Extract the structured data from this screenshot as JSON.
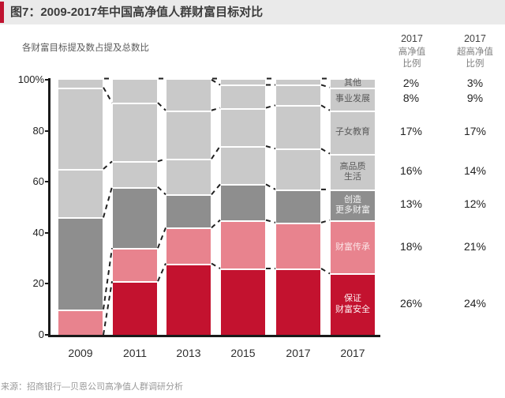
{
  "title": "图7：2009-2017年中国高净值人群财富目标对比",
  "subtitle": "各财富目标提及数占提及总数比",
  "source": "来源：招商银行—贝恩公司高净值人群调研分析",
  "colors": {
    "accent": "#bf1330",
    "title_bg": "#eaeaea",
    "light_gray": "#c9c9c9",
    "dark_gray": "#8e8e8e",
    "pink": "#e8838e",
    "red": "#c3122f",
    "axis": "#1a1a1a"
  },
  "chart_data": {
    "type": "bar",
    "stacked": true,
    "unit": "%",
    "title": "各财富目标提及数占提及总数比",
    "ylim": [
      0,
      100
    ],
    "yticks": [
      {
        "label": "100%",
        "value": 100
      },
      {
        "label": "80",
        "value": 80
      },
      {
        "label": "60",
        "value": 60
      },
      {
        "label": "40",
        "value": 40
      },
      {
        "label": "20",
        "value": 20
      },
      {
        "label": "0",
        "value": 0
      }
    ],
    "x_labels": [
      "2009",
      "2011",
      "2013",
      "2015",
      "2017",
      "2017"
    ],
    "legend": [
      {
        "name": "其他",
        "color": "#c9c9c9",
        "text_color": "#5a5a5a",
        "label_lines": [
          "其他"
        ]
      },
      {
        "name": "事业发展",
        "color": "#c9c9c9",
        "text_color": "#5a5a5a",
        "label_lines": [
          "事业发展"
        ]
      },
      {
        "name": "高品质生活",
        "color": "#c9c9c9",
        "text_color": "#5a5a5a",
        "label_lines": [
          "高品质",
          "生活"
        ]
      },
      {
        "name": "子女教育",
        "color": "#c9c9c9",
        "text_color": "#5a5a5a",
        "label_lines": [
          "子女教育"
        ]
      },
      {
        "name": "创造更多财富",
        "color": "#8e8e8e",
        "text_color": "#f4f4f4",
        "label_lines": [
          "创造",
          "更多财富"
        ]
      },
      {
        "name": "财富传承",
        "color": "#e8838e",
        "text_color": "#fbe4e6",
        "label_lines": [
          "财富传承"
        ]
      },
      {
        "name": "保证财富安全",
        "color": "#c3122f",
        "text_color": "#fdeef0",
        "label_lines": [
          "保证",
          "财富安全"
        ]
      }
    ],
    "bars": [
      {
        "label": "2009",
        "show_labels": false,
        "segments": [
          {
            "name": "保证财富安全",
            "value": 0
          },
          {
            "name": "财富传承",
            "value": 10
          },
          {
            "name": "创造更多财富",
            "value": 36
          },
          {
            "name": "高品质生活",
            "value": 19
          },
          {
            "name": "子女教育",
            "value": 32
          },
          {
            "name": "其他",
            "value": 3
          }
        ]
      },
      {
        "label": "2011",
        "show_labels": false,
        "segments": [
          {
            "name": "保证财富安全",
            "value": 21
          },
          {
            "name": "财富传承",
            "value": 13
          },
          {
            "name": "创造更多财富",
            "value": 24
          },
          {
            "name": "高品质生活",
            "value": 10
          },
          {
            "name": "子女教育",
            "value": 23
          },
          {
            "name": "事业发展",
            "value": 9
          }
        ]
      },
      {
        "label": "2013",
        "show_labels": false,
        "segments": [
          {
            "name": "保证财富安全",
            "value": 28
          },
          {
            "name": "财富传承",
            "value": 14
          },
          {
            "name": "创造更多财富",
            "value": 13
          },
          {
            "name": "高品质生活",
            "value": 14
          },
          {
            "name": "子女教育",
            "value": 19
          },
          {
            "name": "事业发展",
            "value": 12
          }
        ]
      },
      {
        "label": "2015",
        "show_labels": false,
        "segments": [
          {
            "name": "保证财富安全",
            "value": 26
          },
          {
            "name": "财富传承",
            "value": 19
          },
          {
            "name": "创造更多财富",
            "value": 14
          },
          {
            "name": "高品质生活",
            "value": 15
          },
          {
            "name": "子女教育",
            "value": 15
          },
          {
            "name": "事业发展",
            "value": 9
          },
          {
            "name": "其他",
            "value": 2
          }
        ]
      },
      {
        "label": "2017",
        "show_labels": false,
        "segments": [
          {
            "name": "保证财富安全",
            "value": 26
          },
          {
            "name": "财富传承",
            "value": 18
          },
          {
            "name": "创造更多财富",
            "value": 13
          },
          {
            "name": "高品质生活",
            "value": 16
          },
          {
            "name": "子女教育",
            "value": 17
          },
          {
            "name": "事业发展",
            "value": 8
          },
          {
            "name": "其他",
            "value": 2
          }
        ]
      },
      {
        "label": "2017",
        "show_labels": true,
        "segments": [
          {
            "name": "保证财富安全",
            "value": 24
          },
          {
            "name": "财富传承",
            "value": 21
          },
          {
            "name": "创造更多财富",
            "value": 12
          },
          {
            "name": "高品质生活",
            "value": 14
          },
          {
            "name": "子女教育",
            "value": 17
          },
          {
            "name": "事业发展",
            "value": 9
          },
          {
            "name": "其他",
            "value": 3
          }
        ]
      }
    ],
    "right_columns": [
      {
        "header_lines": [
          "2017",
          "高净值",
          "比例"
        ]
      },
      {
        "header_lines": [
          "2017",
          "超高净值",
          "比例"
        ]
      }
    ],
    "rows": [
      {
        "name": "其他",
        "values": [
          "2%",
          "3%"
        ]
      },
      {
        "name": "事业发展",
        "values": [
          "8%",
          "9%"
        ]
      },
      {
        "name": "高品质生活",
        "values": [
          "16%",
          "14%"
        ]
      },
      {
        "name": "子女教育",
        "values": [
          "17%",
          "17%"
        ]
      },
      {
        "name": "创造更多财富",
        "values": [
          "13%",
          "12%"
        ]
      },
      {
        "name": "财富传承",
        "values": [
          "18%",
          "21%"
        ]
      },
      {
        "name": "保证财富安全",
        "values": [
          "26%",
          "24%"
        ]
      }
    ]
  }
}
